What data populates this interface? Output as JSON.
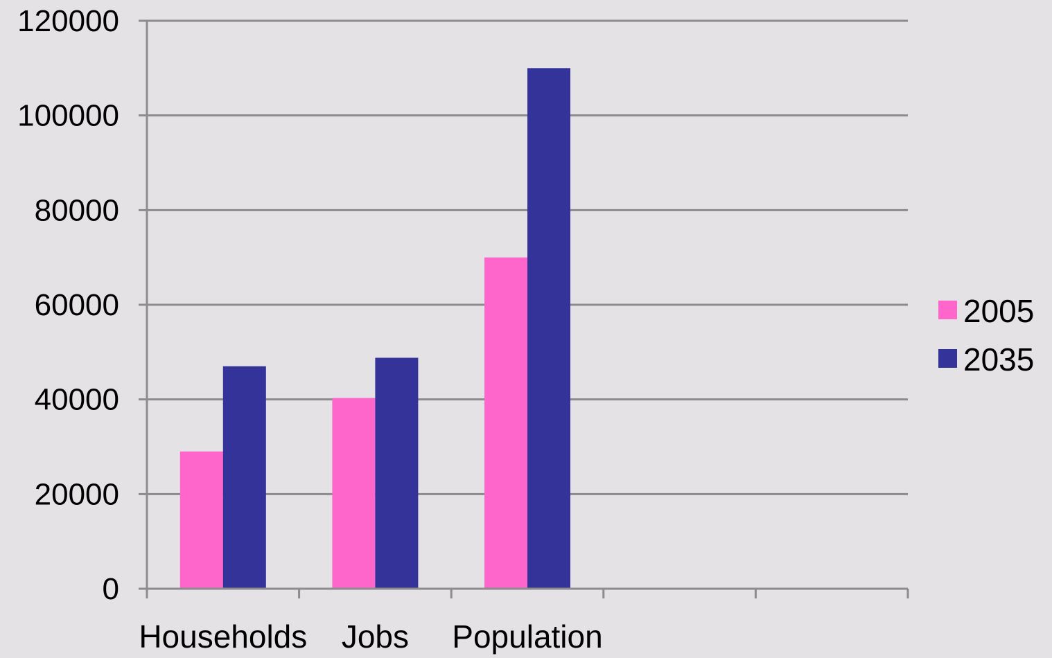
{
  "chart_data": {
    "type": "bar",
    "title": "",
    "xlabel": "",
    "ylabel": "",
    "categories": [
      "Households",
      "Jobs",
      "Population",
      "",
      ""
    ],
    "series": [
      {
        "name": "2005",
        "color": "#ff66cc",
        "values": [
          29000,
          40300,
          70000,
          null,
          null
        ]
      },
      {
        "name": "2035",
        "color": "#333399",
        "values": [
          47000,
          48800,
          110000,
          null,
          null
        ]
      }
    ],
    "ylim": [
      0,
      120000
    ],
    "yticks": [
      "0",
      "20000",
      "40000",
      "60000",
      "80000",
      "100000",
      "120000"
    ],
    "grid": true,
    "legend_position": "right"
  }
}
